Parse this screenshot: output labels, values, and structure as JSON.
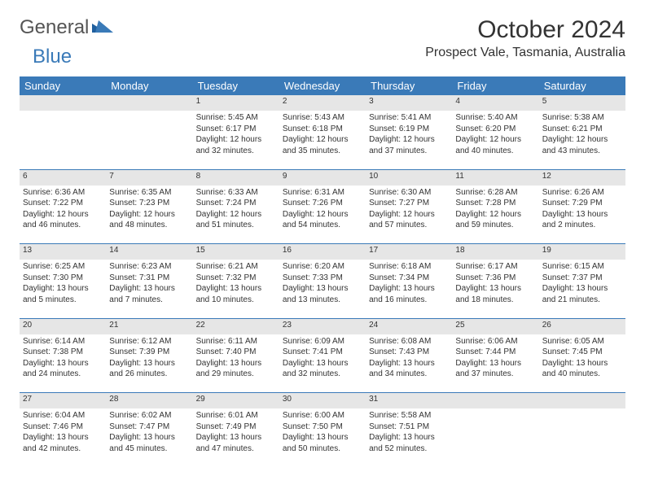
{
  "brand": {
    "part1": "General",
    "part2": "Blue"
  },
  "title": "October 2024",
  "location": "Prospect Vale, Tasmania, Australia",
  "colors": {
    "header_bg": "#3a7ab8",
    "header_fg": "#ffffff",
    "daynum_bg": "#e6e6e6",
    "rule": "#3a7ab8",
    "text": "#333333",
    "brand_blue": "#3a7ab8",
    "brand_grey": "#555555"
  },
  "weekdays": [
    "Sunday",
    "Monday",
    "Tuesday",
    "Wednesday",
    "Thursday",
    "Friday",
    "Saturday"
  ],
  "weeks": [
    [
      null,
      null,
      {
        "n": "1",
        "sr": "5:45 AM",
        "ss": "6:17 PM",
        "dl": "12 hours and 32 minutes."
      },
      {
        "n": "2",
        "sr": "5:43 AM",
        "ss": "6:18 PM",
        "dl": "12 hours and 35 minutes."
      },
      {
        "n": "3",
        "sr": "5:41 AM",
        "ss": "6:19 PM",
        "dl": "12 hours and 37 minutes."
      },
      {
        "n": "4",
        "sr": "5:40 AM",
        "ss": "6:20 PM",
        "dl": "12 hours and 40 minutes."
      },
      {
        "n": "5",
        "sr": "5:38 AM",
        "ss": "6:21 PM",
        "dl": "12 hours and 43 minutes."
      }
    ],
    [
      {
        "n": "6",
        "sr": "6:36 AM",
        "ss": "7:22 PM",
        "dl": "12 hours and 46 minutes."
      },
      {
        "n": "7",
        "sr": "6:35 AM",
        "ss": "7:23 PM",
        "dl": "12 hours and 48 minutes."
      },
      {
        "n": "8",
        "sr": "6:33 AM",
        "ss": "7:24 PM",
        "dl": "12 hours and 51 minutes."
      },
      {
        "n": "9",
        "sr": "6:31 AM",
        "ss": "7:26 PM",
        "dl": "12 hours and 54 minutes."
      },
      {
        "n": "10",
        "sr": "6:30 AM",
        "ss": "7:27 PM",
        "dl": "12 hours and 57 minutes."
      },
      {
        "n": "11",
        "sr": "6:28 AM",
        "ss": "7:28 PM",
        "dl": "12 hours and 59 minutes."
      },
      {
        "n": "12",
        "sr": "6:26 AM",
        "ss": "7:29 PM",
        "dl": "13 hours and 2 minutes."
      }
    ],
    [
      {
        "n": "13",
        "sr": "6:25 AM",
        "ss": "7:30 PM",
        "dl": "13 hours and 5 minutes."
      },
      {
        "n": "14",
        "sr": "6:23 AM",
        "ss": "7:31 PM",
        "dl": "13 hours and 7 minutes."
      },
      {
        "n": "15",
        "sr": "6:21 AM",
        "ss": "7:32 PM",
        "dl": "13 hours and 10 minutes."
      },
      {
        "n": "16",
        "sr": "6:20 AM",
        "ss": "7:33 PM",
        "dl": "13 hours and 13 minutes."
      },
      {
        "n": "17",
        "sr": "6:18 AM",
        "ss": "7:34 PM",
        "dl": "13 hours and 16 minutes."
      },
      {
        "n": "18",
        "sr": "6:17 AM",
        "ss": "7:36 PM",
        "dl": "13 hours and 18 minutes."
      },
      {
        "n": "19",
        "sr": "6:15 AM",
        "ss": "7:37 PM",
        "dl": "13 hours and 21 minutes."
      }
    ],
    [
      {
        "n": "20",
        "sr": "6:14 AM",
        "ss": "7:38 PM",
        "dl": "13 hours and 24 minutes."
      },
      {
        "n": "21",
        "sr": "6:12 AM",
        "ss": "7:39 PM",
        "dl": "13 hours and 26 minutes."
      },
      {
        "n": "22",
        "sr": "6:11 AM",
        "ss": "7:40 PM",
        "dl": "13 hours and 29 minutes."
      },
      {
        "n": "23",
        "sr": "6:09 AM",
        "ss": "7:41 PM",
        "dl": "13 hours and 32 minutes."
      },
      {
        "n": "24",
        "sr": "6:08 AM",
        "ss": "7:43 PM",
        "dl": "13 hours and 34 minutes."
      },
      {
        "n": "25",
        "sr": "6:06 AM",
        "ss": "7:44 PM",
        "dl": "13 hours and 37 minutes."
      },
      {
        "n": "26",
        "sr": "6:05 AM",
        "ss": "7:45 PM",
        "dl": "13 hours and 40 minutes."
      }
    ],
    [
      {
        "n": "27",
        "sr": "6:04 AM",
        "ss": "7:46 PM",
        "dl": "13 hours and 42 minutes."
      },
      {
        "n": "28",
        "sr": "6:02 AM",
        "ss": "7:47 PM",
        "dl": "13 hours and 45 minutes."
      },
      {
        "n": "29",
        "sr": "6:01 AM",
        "ss": "7:49 PM",
        "dl": "13 hours and 47 minutes."
      },
      {
        "n": "30",
        "sr": "6:00 AM",
        "ss": "7:50 PM",
        "dl": "13 hours and 50 minutes."
      },
      {
        "n": "31",
        "sr": "5:58 AM",
        "ss": "7:51 PM",
        "dl": "13 hours and 52 minutes."
      },
      null,
      null
    ]
  ],
  "labels": {
    "sunrise": "Sunrise: ",
    "sunset": "Sunset: ",
    "daylight": "Daylight: "
  }
}
